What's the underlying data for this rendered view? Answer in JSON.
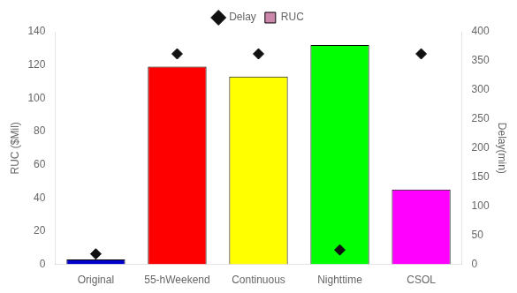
{
  "chart_data": {
    "type": "bar",
    "categories": [
      "Original",
      "55-hWeekend",
      "Continuous",
      "Nighttime",
      "CSOL"
    ],
    "series": [
      {
        "name": "RUC",
        "type": "bar",
        "color": "#CC88AA",
        "colors": [
          "#0000CC",
          "#FF0000",
          "#FFFF00",
          "#00FF00",
          "#FF00FF"
        ],
        "values": [
          3,
          119,
          113,
          132,
          45
        ]
      },
      {
        "name": "Delay",
        "type": "scatter",
        "marker": "diamond",
        "color": "#111111",
        "axis": "y2",
        "values": [
          18,
          362,
          362,
          25,
          362
        ]
      }
    ],
    "ylabel": "RUC ($Mil)",
    "y2label": "Delay(min)",
    "ylim": [
      0,
      140
    ],
    "yticks": [
      0,
      20,
      40,
      60,
      80,
      100,
      120,
      140
    ],
    "y2lim": [
      0,
      400
    ],
    "y2ticks": [
      0,
      50,
      100,
      150,
      200,
      250,
      300,
      350,
      400
    ],
    "legend": "top",
    "grid": false
  }
}
